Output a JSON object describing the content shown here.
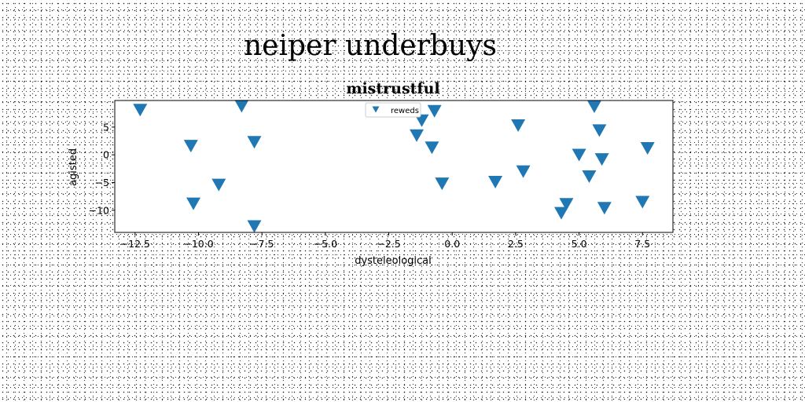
{
  "figure": {
    "suptitle": "neiper underbuys"
  },
  "chart_data": {
    "type": "scatter",
    "title": "mistrustful",
    "xlabel": "dysteleological",
    "ylabel": "agisted",
    "xlim": [
      -13.3,
      8.7
    ],
    "ylim": [
      -14.0,
      9.8
    ],
    "xticks": [
      -12.5,
      -10.0,
      -7.5,
      -5.0,
      -2.5,
      0.0,
      2.5,
      5.0,
      7.5
    ],
    "xtick_labels": [
      "−12.5",
      "−10.0",
      "−7.5",
      "−5.0",
      "−2.5",
      "0.0",
      "2.5",
      "5.0",
      "7.5"
    ],
    "yticks": [
      5,
      0,
      -5,
      -10
    ],
    "ytick_labels": [
      "5",
      "0",
      "−5",
      "−10"
    ],
    "grid": false,
    "legend": {
      "placement": "upper-center"
    },
    "series": [
      {
        "name": "reweds",
        "marker": "triangle-down",
        "color": "#1f77b4",
        "points": [
          [
            -12.3,
            8.2
          ],
          [
            -8.3,
            8.9
          ],
          [
            -10.3,
            1.7
          ],
          [
            -7.8,
            2.4
          ],
          [
            -10.2,
            -8.7
          ],
          [
            -9.2,
            -5.3
          ],
          [
            -7.8,
            -12.8
          ],
          [
            -1.2,
            6.3
          ],
          [
            -0.7,
            8.0
          ],
          [
            -1.4,
            3.6
          ],
          [
            -0.8,
            1.4
          ],
          [
            -0.4,
            -5.1
          ],
          [
            1.7,
            -4.8
          ],
          [
            2.6,
            5.4
          ],
          [
            2.8,
            -2.9
          ],
          [
            5.6,
            8.8
          ],
          [
            5.8,
            4.5
          ],
          [
            5.0,
            0.1
          ],
          [
            5.9,
            -0.7
          ],
          [
            5.4,
            -3.8
          ],
          [
            7.7,
            1.3
          ],
          [
            4.5,
            -8.8
          ],
          [
            4.3,
            -10.4
          ],
          [
            6.0,
            -9.5
          ],
          [
            7.5,
            -8.4
          ]
        ]
      }
    ]
  }
}
